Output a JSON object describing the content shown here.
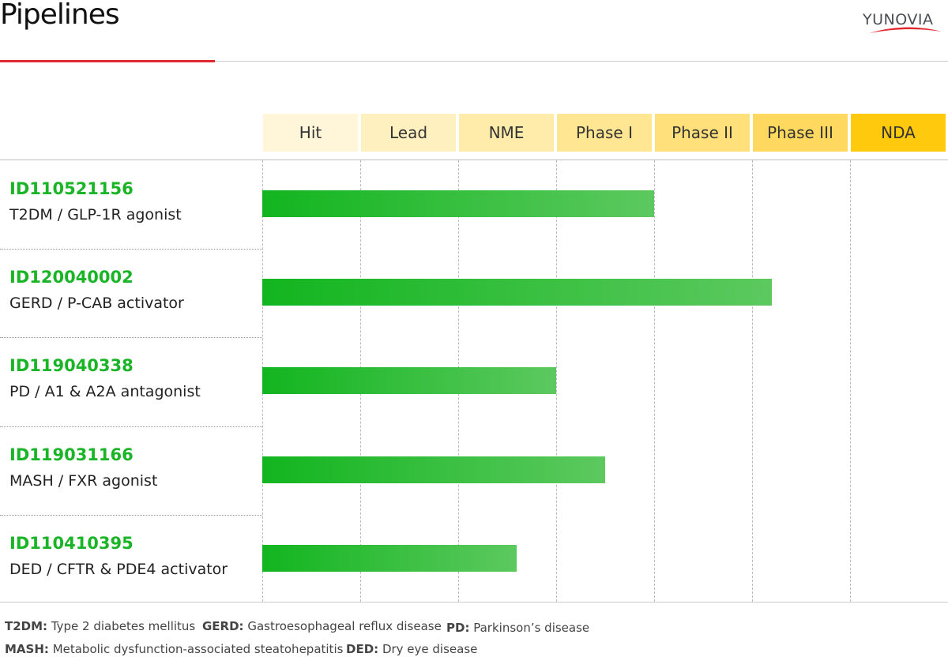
{
  "header": {
    "title": "Pipelines",
    "logo_text": "YUNOVIA"
  },
  "colors": {
    "accent_red": "#e0282e",
    "bar_start": "#12b51f",
    "bar_end": "#5cc95f",
    "id_green": "#1ab526"
  },
  "chart_data": {
    "type": "bar",
    "orientation": "horizontal",
    "categories": [
      "Hit",
      "Lead",
      "NME",
      "Phase I",
      "Phase II",
      "Phase III",
      "NDA"
    ],
    "category_colors": [
      "#fff6da",
      "#fff0c0",
      "#ffebaa",
      "#ffe692",
      "#ffe07a",
      "#ffd95f",
      "#ffc90d"
    ],
    "xlim": [
      0,
      7
    ],
    "unit": "stages completed",
    "rows": [
      {
        "id": "ID110521156",
        "desc": "T2DM / GLP-1R agonist",
        "value": 4.0
      },
      {
        "id": "ID120040002",
        "desc": "GERD / P-CAB activator",
        "value": 5.2
      },
      {
        "id": "ID119040338",
        "desc": "PD / A1 & A2A antagonist",
        "value": 3.0
      },
      {
        "id": "ID119031166",
        "desc": "MASH / FXR agonist",
        "value": 3.5
      },
      {
        "id": "ID110410395",
        "desc": "DED / CFTR & PDE4 activator",
        "value": 2.6
      }
    ]
  },
  "footnotes": [
    {
      "abbr": "T2DM:",
      "text": "Type 2 diabetes mellitus"
    },
    {
      "abbr": "GERD:",
      "text": "Gastroesophageal reflux disease"
    },
    {
      "abbr": "PD:",
      "text": "Parkinson’s disease"
    },
    {
      "abbr": "MASH:",
      "text": "Metabolic dysfunction-associated steatohepatitis"
    },
    {
      "abbr": "DED:",
      "text": "Dry eye disease"
    }
  ]
}
